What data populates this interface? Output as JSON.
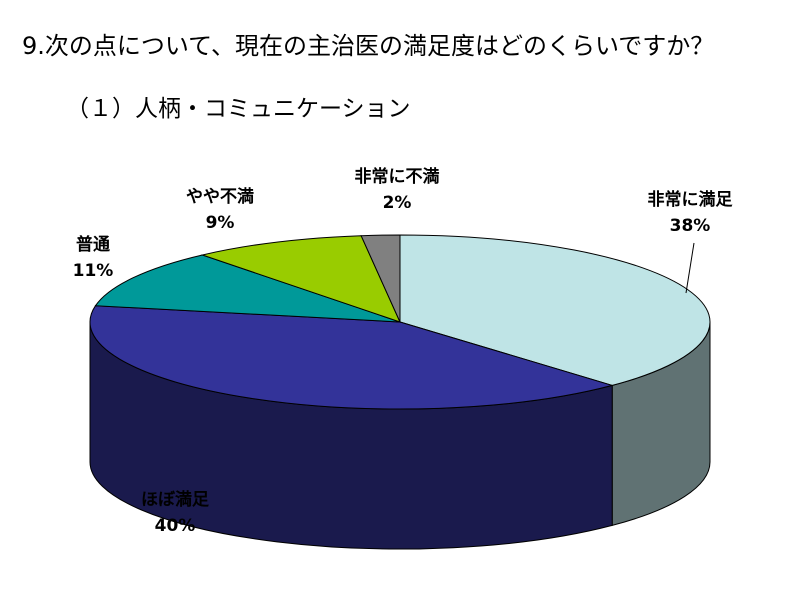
{
  "header": {
    "title": "9.次の点について、現在の主治医の満足度はどのくらいですか？",
    "subtitle": "（１）人柄・コミュニケーション"
  },
  "chart_data": {
    "type": "pie",
    "style": "3d",
    "title": "",
    "categories": [
      "非常に満足",
      "ほぼ満足",
      "普通",
      "やや不満",
      "非常に不満"
    ],
    "values": [
      38,
      40,
      11,
      9,
      2
    ],
    "value_labels": [
      "38%",
      "40%",
      "11%",
      "9%",
      "2%"
    ],
    "colors": [
      "#BFE4E6",
      "#333399",
      "#009999",
      "#99CC00",
      "#808080"
    ]
  }
}
